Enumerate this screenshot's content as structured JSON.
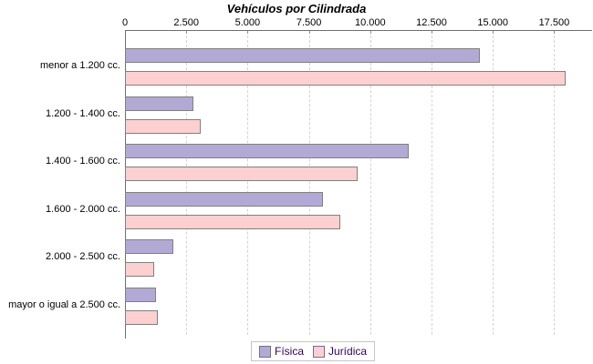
{
  "title": "Vehículos por Cilindrada",
  "chart_data": {
    "type": "bar",
    "orientation": "horizontal",
    "title": "Vehículos por Cilindrada",
    "categories": [
      "menor a 1.200 cc.",
      "1.200 - 1.400 cc.",
      "1.400 - 1.600 cc.",
      "1.600 - 2.000 cc.",
      "2.000 - 2.500 cc.",
      "mayor o igual a 2.500 cc."
    ],
    "series": [
      {
        "name": "Física",
        "color": "#b3a9d5",
        "border_color": "#808080",
        "values": [
          14400,
          2700,
          11500,
          8000,
          1900,
          1200
        ]
      },
      {
        "name": "Jurídica",
        "color": "#fcd0d0",
        "border_color": "#808080",
        "values": [
          17900,
          3000,
          9400,
          8700,
          1100,
          1250
        ]
      }
    ],
    "xlim": [
      0,
      17500
    ],
    "xticks": [
      0,
      2500,
      5000,
      7500,
      10000,
      12500,
      15000,
      17500
    ],
    "xtick_labels": [
      "0",
      "2.500",
      "5.000",
      "7.500",
      "10.000",
      "12.500",
      "15.000",
      "17.500"
    ],
    "xaxis_position": "top",
    "grid": "vertical-dashed",
    "grid_color": "#d4d4d4",
    "axis_color": "#707070",
    "legend_position": "bottom",
    "legend": [
      {
        "label": "Física",
        "color": "#b3a9d5"
      },
      {
        "label": "Jurídica",
        "color": "#fcd0d0"
      }
    ],
    "legend_text_color": "#330066"
  }
}
